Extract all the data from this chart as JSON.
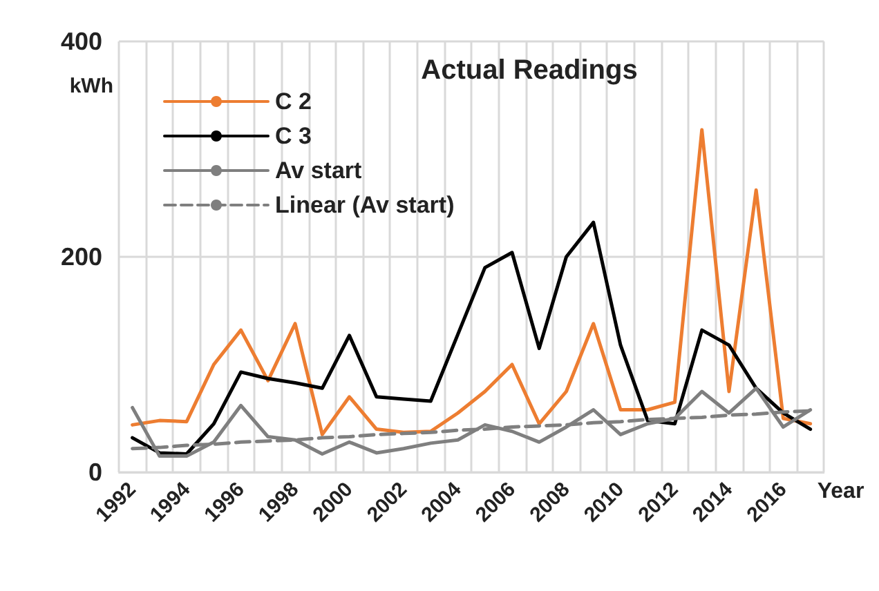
{
  "chart_data": {
    "type": "line",
    "title": "Actual Readings",
    "xlabel": "Year",
    "ylabel": "kWh",
    "categories": [
      "1992",
      null,
      "1994",
      null,
      "1996",
      null,
      "1998",
      null,
      "2000",
      null,
      "2002",
      null,
      "2004",
      null,
      "2006",
      null,
      "2008",
      null,
      "2010",
      null,
      "2012",
      null,
      "2014",
      null,
      "2016",
      null
    ],
    "series": [
      {
        "name": "C 2",
        "color": "#ed7d31",
        "values": [
          44,
          48,
          47,
          100,
          132,
          85,
          138,
          35,
          70,
          40,
          37,
          38,
          55,
          75,
          100,
          45,
          75,
          138,
          58,
          58,
          65,
          318,
          75,
          262,
          50,
          45
        ]
      },
      {
        "name": "C 3",
        "color": "#000000",
        "values": [
          32,
          18,
          17,
          45,
          93,
          87,
          83,
          78,
          127,
          70,
          68,
          66,
          128,
          190,
          204,
          115,
          200,
          232,
          118,
          48,
          45,
          132,
          118,
          78,
          55,
          40
        ]
      },
      {
        "name": "Av start",
        "color": "#7f7f7f",
        "values": [
          60,
          15,
          15,
          28,
          62,
          33,
          30,
          17,
          28,
          18,
          22,
          27,
          30,
          44,
          38,
          28,
          42,
          58,
          35,
          45,
          50,
          75,
          55,
          78,
          42,
          58
        ]
      },
      {
        "name": "Linear (Av start)",
        "color": "#7f7f7f",
        "line_style": "dashed",
        "values": [
          22,
          23,
          25,
          26,
          28,
          29,
          30,
          32,
          33,
          35,
          36,
          37,
          39,
          40,
          42,
          43,
          44,
          46,
          47,
          49,
          50,
          51,
          53,
          54,
          56,
          57
        ]
      }
    ],
    "ylim": [
      0,
      400
    ],
    "yticks": [
      0,
      200,
      400
    ],
    "grid": true,
    "legend": "top left",
    "marker": "none",
    "line_style": "solid"
  }
}
